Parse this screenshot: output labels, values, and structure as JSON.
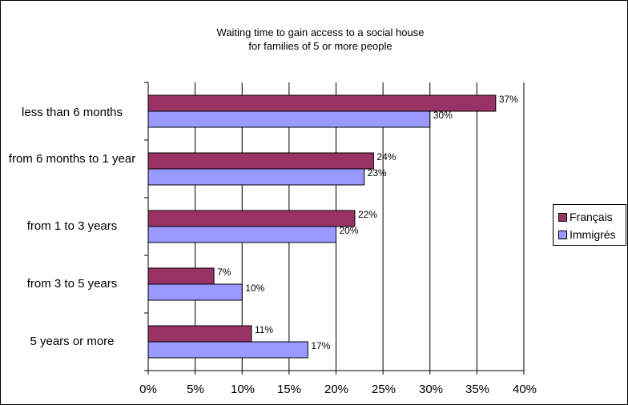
{
  "chart_data": {
    "type": "bar",
    "orientation": "horizontal",
    "title": [
      "Waiting time to gain access to a social house",
      "for families of 5 or more people"
    ],
    "categories": [
      "less than 6 months",
      "from 6 months to 1 year",
      "from 1 to 3 years",
      "from 3 to 5 years",
      "5 years or more"
    ],
    "series": [
      {
        "name": "Français",
        "color": "#993366",
        "values": [
          37,
          24,
          22,
          7,
          11
        ],
        "labels": [
          "37%",
          "24%",
          "22%",
          "7%",
          "11%"
        ]
      },
      {
        "name": "Immigrés",
        "color": "#9999ff",
        "values": [
          30,
          23,
          20,
          10,
          17
        ],
        "labels": [
          "30%",
          "23%",
          "20%",
          "10%",
          "17%"
        ]
      }
    ],
    "x_ticks": [
      "0%",
      "5%",
      "10%",
      "15%",
      "20%",
      "25%",
      "30%",
      "35%",
      "40%"
    ],
    "xlim": [
      0,
      40
    ],
    "grid": "vertical",
    "legend_position": "right"
  }
}
